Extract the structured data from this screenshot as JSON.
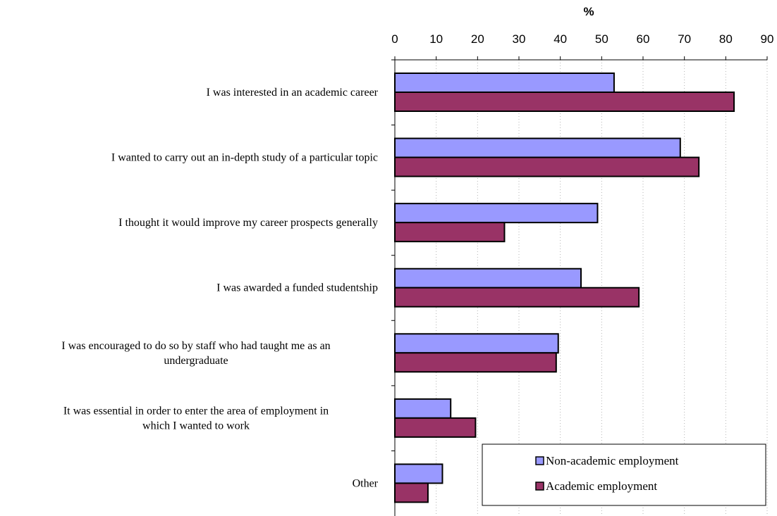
{
  "chart_data": {
    "type": "bar",
    "orientation": "horizontal",
    "title": "",
    "xlabel": "%",
    "ylabel": "",
    "xlim": [
      0,
      90
    ],
    "x_ticks": [
      0,
      10,
      20,
      30,
      40,
      50,
      60,
      70,
      80,
      90
    ],
    "x_axis_position": "top",
    "grid": "vertical dotted",
    "legend_position": "bottom-right",
    "categories": [
      [
        "I was interested in an academic career"
      ],
      [
        "I wanted to carry out an in-depth study of a particular topic"
      ],
      [
        "I thought it would improve my career prospects generally"
      ],
      [
        "I was awarded a funded studentship"
      ],
      [
        "I was encouraged to do so by staff who had taught me as an",
        "undergraduate"
      ],
      [
        "It was essential in order to enter the area of employment in",
        "which I wanted to work"
      ],
      [
        "Other"
      ]
    ],
    "series": [
      {
        "name": "Non-academic employment",
        "color": "#9999FF",
        "values": [
          53,
          69,
          49,
          45,
          39.5,
          13.5,
          11.5
        ]
      },
      {
        "name": "Academic employment",
        "color": "#993366",
        "values": [
          82,
          73.5,
          26.5,
          59,
          39,
          19.5,
          8
        ]
      }
    ]
  }
}
